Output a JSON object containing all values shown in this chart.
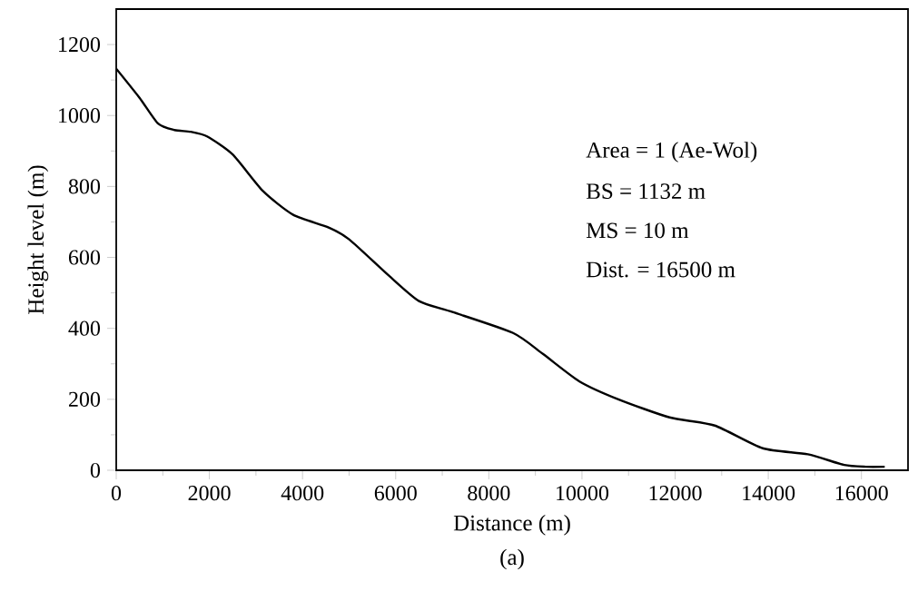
{
  "chart_data": {
    "type": "line",
    "xlabel": "Distance (m)",
    "ylabel": "Height level (m)",
    "x": [
      0,
      500,
      900,
      1250,
      1600,
      1950,
      2500,
      3150,
      3800,
      4550,
      5000,
      5850,
      6500,
      7220,
      8520,
      9160,
      9940,
      10780,
      11880,
      12850,
      13880,
      14850,
      15630,
      16100,
      16500
    ],
    "series": [
      {
        "color": "#000000",
        "values": [
          1132,
          1050,
          977,
          959,
          954,
          941,
          890,
          787,
          720,
          685,
          651,
          549,
          477,
          446,
          387,
          328,
          251,
          200,
          149,
          126,
          62,
          45,
          15,
          10,
          10
        ]
      }
    ],
    "xlim": [
      0,
      17000
    ],
    "ylim": [
      0,
      1300
    ],
    "xticks": [
      0,
      2000,
      4000,
      6000,
      8000,
      10000,
      12000,
      14000,
      16000
    ],
    "yticks": [
      0,
      200,
      400,
      600,
      800,
      1000,
      1200
    ],
    "annotations": [
      "Area = 1 (Ae-Wol)",
      "BS = 1132 m",
      "MS = 10 m",
      "Dist. = 16500 m",
      "(a)"
    ],
    "marker": "none",
    "line_style": "solid"
  }
}
